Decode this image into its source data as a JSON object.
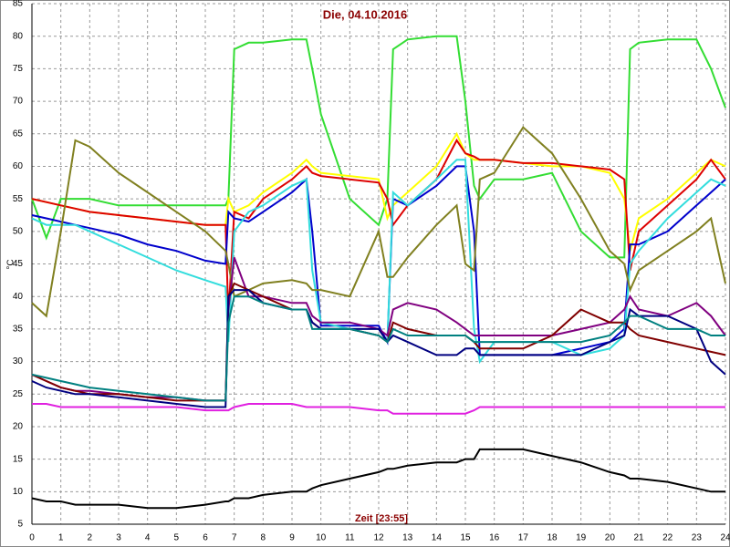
{
  "chart_data": {
    "type": "line",
    "title": "Die, 04.10.2016",
    "x_label": "Zeit [23:55]",
    "y_label": "°C",
    "x": [
      0,
      0.5,
      1,
      1.5,
      2,
      3,
      4,
      5,
      6,
      6.7,
      6.8,
      7,
      7.5,
      8,
      9,
      9.5,
      9.7,
      10,
      11,
      12,
      12.3,
      12.5,
      13,
      14,
      14.7,
      15,
      15.3,
      15.5,
      16,
      17,
      18,
      19,
      20,
      20.5,
      20.7,
      21,
      22,
      23,
      23.5,
      24
    ],
    "xlim": [
      0,
      24
    ],
    "ylim": [
      5,
      85
    ],
    "xticks": [
      0,
      1,
      2,
      3,
      4,
      5,
      6,
      7,
      8,
      9,
      10,
      11,
      12,
      13,
      14,
      15,
      16,
      17,
      18,
      19,
      20,
      21,
      22,
      23,
      24
    ],
    "yticks": [
      5,
      10,
      15,
      20,
      25,
      30,
      35,
      40,
      45,
      50,
      55,
      60,
      65,
      70,
      75,
      80,
      85
    ],
    "grid": true,
    "series": [
      {
        "color": "#33dd33",
        "values": [
          55,
          49,
          55,
          55,
          55,
          54,
          54,
          54,
          54,
          54,
          55,
          78,
          79,
          79,
          79.5,
          79.5,
          75,
          68,
          55,
          51,
          55,
          78,
          79.5,
          80,
          80,
          70,
          57,
          55,
          58,
          58,
          59,
          50,
          46,
          46,
          78,
          79,
          79.5,
          79.5,
          75,
          69
        ]
      },
      {
        "color": "#ffff00",
        "values": [
          55,
          54.5,
          54,
          53.5,
          53,
          52.5,
          52,
          51.5,
          51,
          51,
          55,
          53,
          54,
          56,
          59,
          61,
          60,
          59,
          58.5,
          58,
          52,
          54,
          56,
          60,
          65,
          62,
          61,
          61,
          61,
          60.5,
          60,
          60,
          59,
          55,
          47,
          52,
          55,
          59,
          61,
          60
        ]
      },
      {
        "color": "#dd0000",
        "values": [
          55,
          54.5,
          54,
          53.5,
          53,
          52.5,
          52,
          51.5,
          51,
          51,
          37,
          53,
          52,
          55,
          58,
          60,
          59,
          58.5,
          58,
          57.5,
          55,
          51,
          54,
          58,
          64,
          62,
          61.5,
          61,
          61,
          60.5,
          60.5,
          60,
          59.5,
          58,
          44,
          50,
          54,
          58,
          61,
          58
        ]
      },
      {
        "color": "#0000cc",
        "values": [
          52.5,
          52,
          51.5,
          51,
          50.5,
          49.5,
          48,
          47,
          45.5,
          45,
          53,
          52,
          51.5,
          53,
          56,
          58,
          50,
          35.5,
          35.5,
          35.5,
          33,
          55,
          54,
          57,
          60,
          60,
          50,
          31,
          31,
          31,
          31,
          32,
          33,
          35,
          48,
          48,
          50,
          54,
          56,
          58
        ]
      },
      {
        "color": "#33dddd",
        "values": [
          52,
          51,
          51,
          51,
          50,
          48,
          46,
          44,
          42.5,
          41.5,
          33,
          50,
          53,
          54,
          57,
          58,
          44,
          36,
          35,
          34,
          33,
          56,
          54,
          58,
          61,
          61,
          35,
          30,
          33,
          33,
          33,
          31,
          32,
          34,
          45,
          47,
          52,
          56,
          58,
          57
        ]
      },
      {
        "color": "#808020",
        "values": [
          39,
          37,
          50,
          64,
          63,
          59,
          56,
          53,
          50,
          47,
          45,
          40,
          41,
          42,
          42.5,
          42,
          41,
          41,
          40,
          50,
          43,
          43,
          46,
          51,
          54,
          45,
          44,
          58,
          59,
          66,
          62,
          55,
          47,
          45,
          41,
          44,
          47,
          50,
          52,
          42
        ]
      },
      {
        "color": "#800080",
        "values": [
          28,
          27,
          26,
          25.5,
          25.5,
          25,
          24.5,
          24.5,
          24,
          24,
          38,
          46,
          40,
          40,
          39,
          39,
          37,
          36,
          36,
          35,
          34,
          38,
          39,
          38,
          36,
          35,
          34,
          34,
          34,
          34,
          34,
          35,
          36,
          38,
          40,
          38,
          37,
          39,
          37,
          34
        ]
      },
      {
        "color": "#800000",
        "values": [
          28,
          27,
          26,
          25.5,
          25,
          25,
          24.5,
          24,
          24,
          24,
          40,
          42,
          41,
          40,
          38,
          38,
          36,
          35,
          35,
          34,
          33,
          36,
          35,
          34,
          34,
          34,
          33,
          32,
          32,
          32,
          34,
          38,
          36,
          36,
          35,
          34,
          33,
          32,
          31.5,
          31
        ]
      },
      {
        "color": "#000080",
        "values": [
          27,
          26,
          25.5,
          25,
          25,
          24.5,
          24,
          23.5,
          23,
          23,
          40,
          41,
          41,
          39,
          38,
          38,
          36,
          35,
          35,
          35,
          33,
          34,
          33,
          31,
          31,
          32,
          32,
          31,
          31,
          31,
          31,
          31,
          33,
          34,
          38,
          37,
          37,
          35,
          30,
          28
        ]
      },
      {
        "color": "#008080",
        "values": [
          28,
          27.5,
          27,
          26.5,
          26,
          25.5,
          25,
          24.5,
          24,
          24,
          36,
          40,
          40,
          39,
          38,
          38,
          35,
          35,
          35,
          34,
          33,
          35,
          34,
          34,
          34,
          34,
          33,
          33,
          33,
          33,
          33,
          33,
          34,
          36,
          37,
          37,
          35,
          35,
          34,
          34
        ]
      },
      {
        "color": "#e020e0",
        "values": [
          23.5,
          23.5,
          23,
          23,
          23,
          23,
          23,
          23,
          22.5,
          22.5,
          22.5,
          23,
          23.5,
          23.5,
          23.5,
          23,
          23,
          23,
          23,
          22.5,
          22.5,
          22,
          22,
          22,
          22,
          22,
          22.5,
          23,
          23,
          23,
          23,
          23,
          23,
          23,
          23,
          23,
          23,
          23,
          23,
          23
        ]
      },
      {
        "color": "#000000",
        "values": [
          9,
          8.5,
          8.5,
          8,
          8,
          8,
          7.5,
          7.5,
          8,
          8.5,
          8.5,
          9,
          9,
          9.5,
          10,
          10,
          10.5,
          11,
          12,
          13,
          13.5,
          13.5,
          14,
          14.5,
          14.5,
          15,
          15,
          16.5,
          16.5,
          16.5,
          15.5,
          14.5,
          13,
          12.5,
          12,
          12,
          11.5,
          10.5,
          10,
          10
        ]
      }
    ]
  }
}
